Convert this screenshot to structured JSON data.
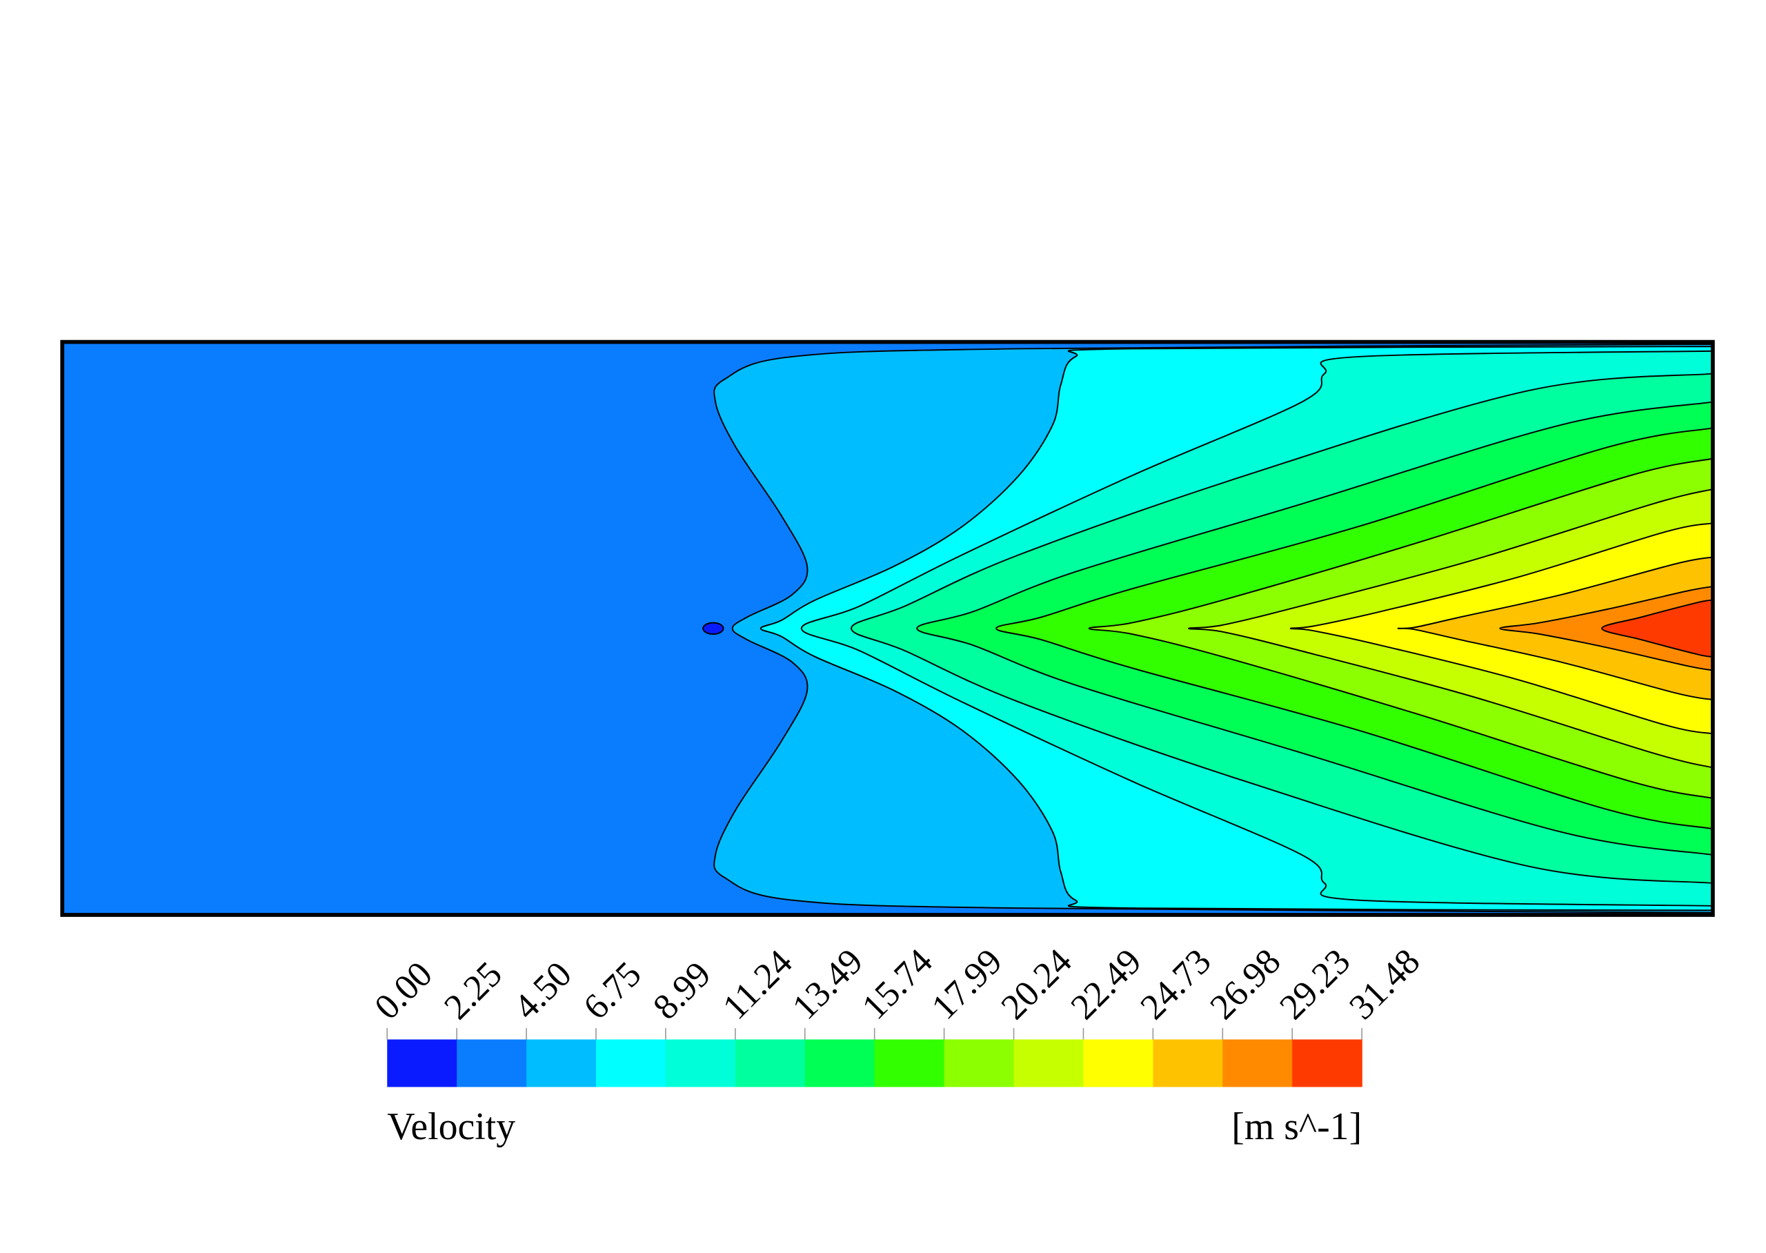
{
  "chart_data": {
    "type": "contour",
    "colorbar": {
      "title": "Velocity",
      "unit": "[m s^-1]",
      "ticks": [
        {
          "value": 0,
          "label": "0.00"
        },
        2.25,
        {
          "value": 4.5,
          "label": "4.50"
        },
        6.75,
        8.99,
        11.24,
        13.49,
        15.74,
        17.99,
        20.24,
        22.49,
        24.73,
        26.98,
        29.23,
        31.48
      ],
      "colors": [
        "#0a1cff",
        "#0a7dff",
        "#00bdff",
        "#00ffff",
        "#00ffd8",
        "#00ff9f",
        "#00ff55",
        "#32ff00",
        "#8cff00",
        "#c6ff00",
        "#ffff00",
        "#ffc200",
        "#ff8a00",
        "#ff3a00"
      ]
    }
  }
}
